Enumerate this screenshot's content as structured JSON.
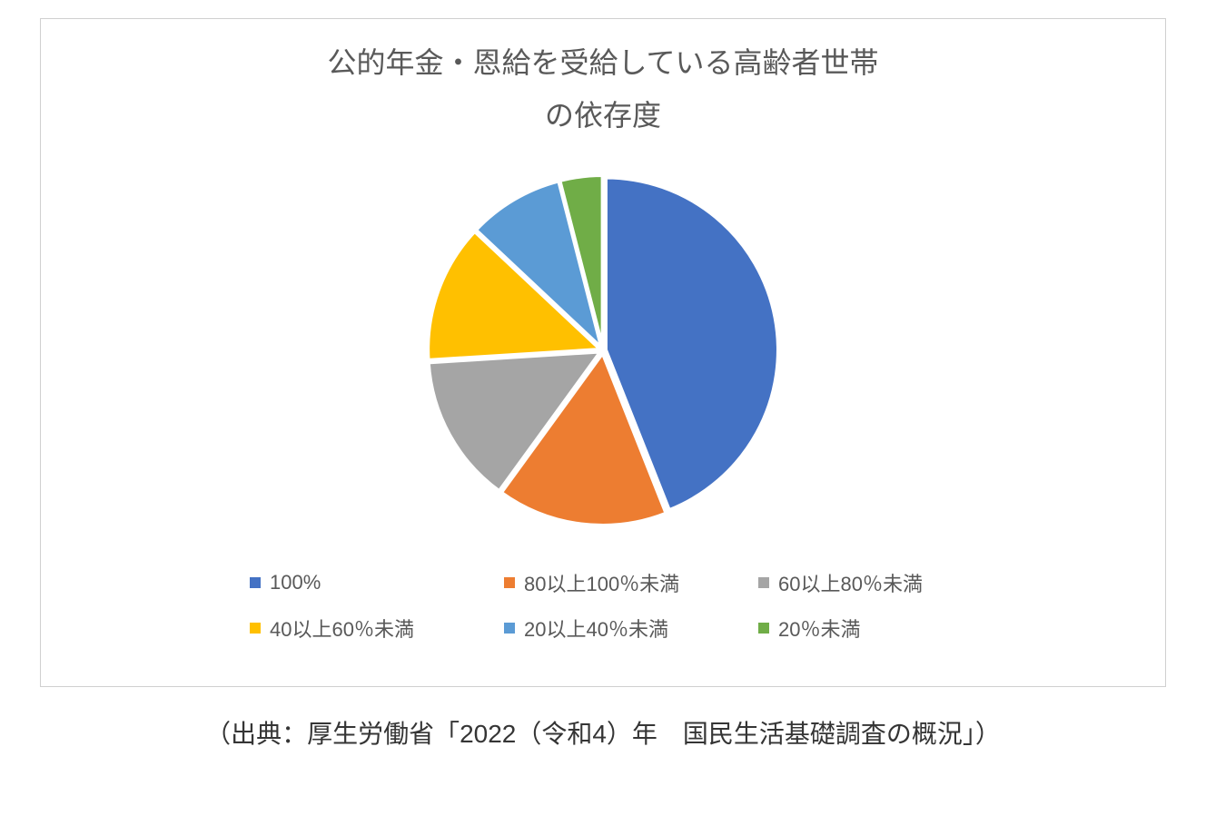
{
  "chart": {
    "type": "pie",
    "title_line1": "公的年金・恩給を受給している高齢者世帯",
    "title_line2": "の依存度",
    "title_fontsize": 32,
    "title_color": "#595959",
    "background_color": "#ffffff",
    "border_color": "#d0d0d0",
    "pie_radius": 190,
    "pie_stroke": "#ffffff",
    "pie_stroke_width": 4,
    "slices": [
      {
        "label": "100%",
        "value": 44,
        "color": "#4472c4"
      },
      {
        "label": "80以上100％未満",
        "value": 16,
        "color": "#ed7d31"
      },
      {
        "label": "60以上80％未満",
        "value": 14,
        "color": "#a5a5a5"
      },
      {
        "label": "40以上60％未満",
        "value": 13,
        "color": "#ffc000"
      },
      {
        "label": "20以上40％未満",
        "value": 9,
        "color": "#5b9bd5"
      },
      {
        "label": "20％未満",
        "value": 4,
        "color": "#70ad47"
      }
    ],
    "legend": {
      "fontsize": 22,
      "color": "#595959",
      "swatch_size": 12
    }
  },
  "source": "（出典：厚生労働省「2022（令和4）年　国民生活基礎調査の概況」）",
  "source_fontsize": 28,
  "source_color": "#353535"
}
